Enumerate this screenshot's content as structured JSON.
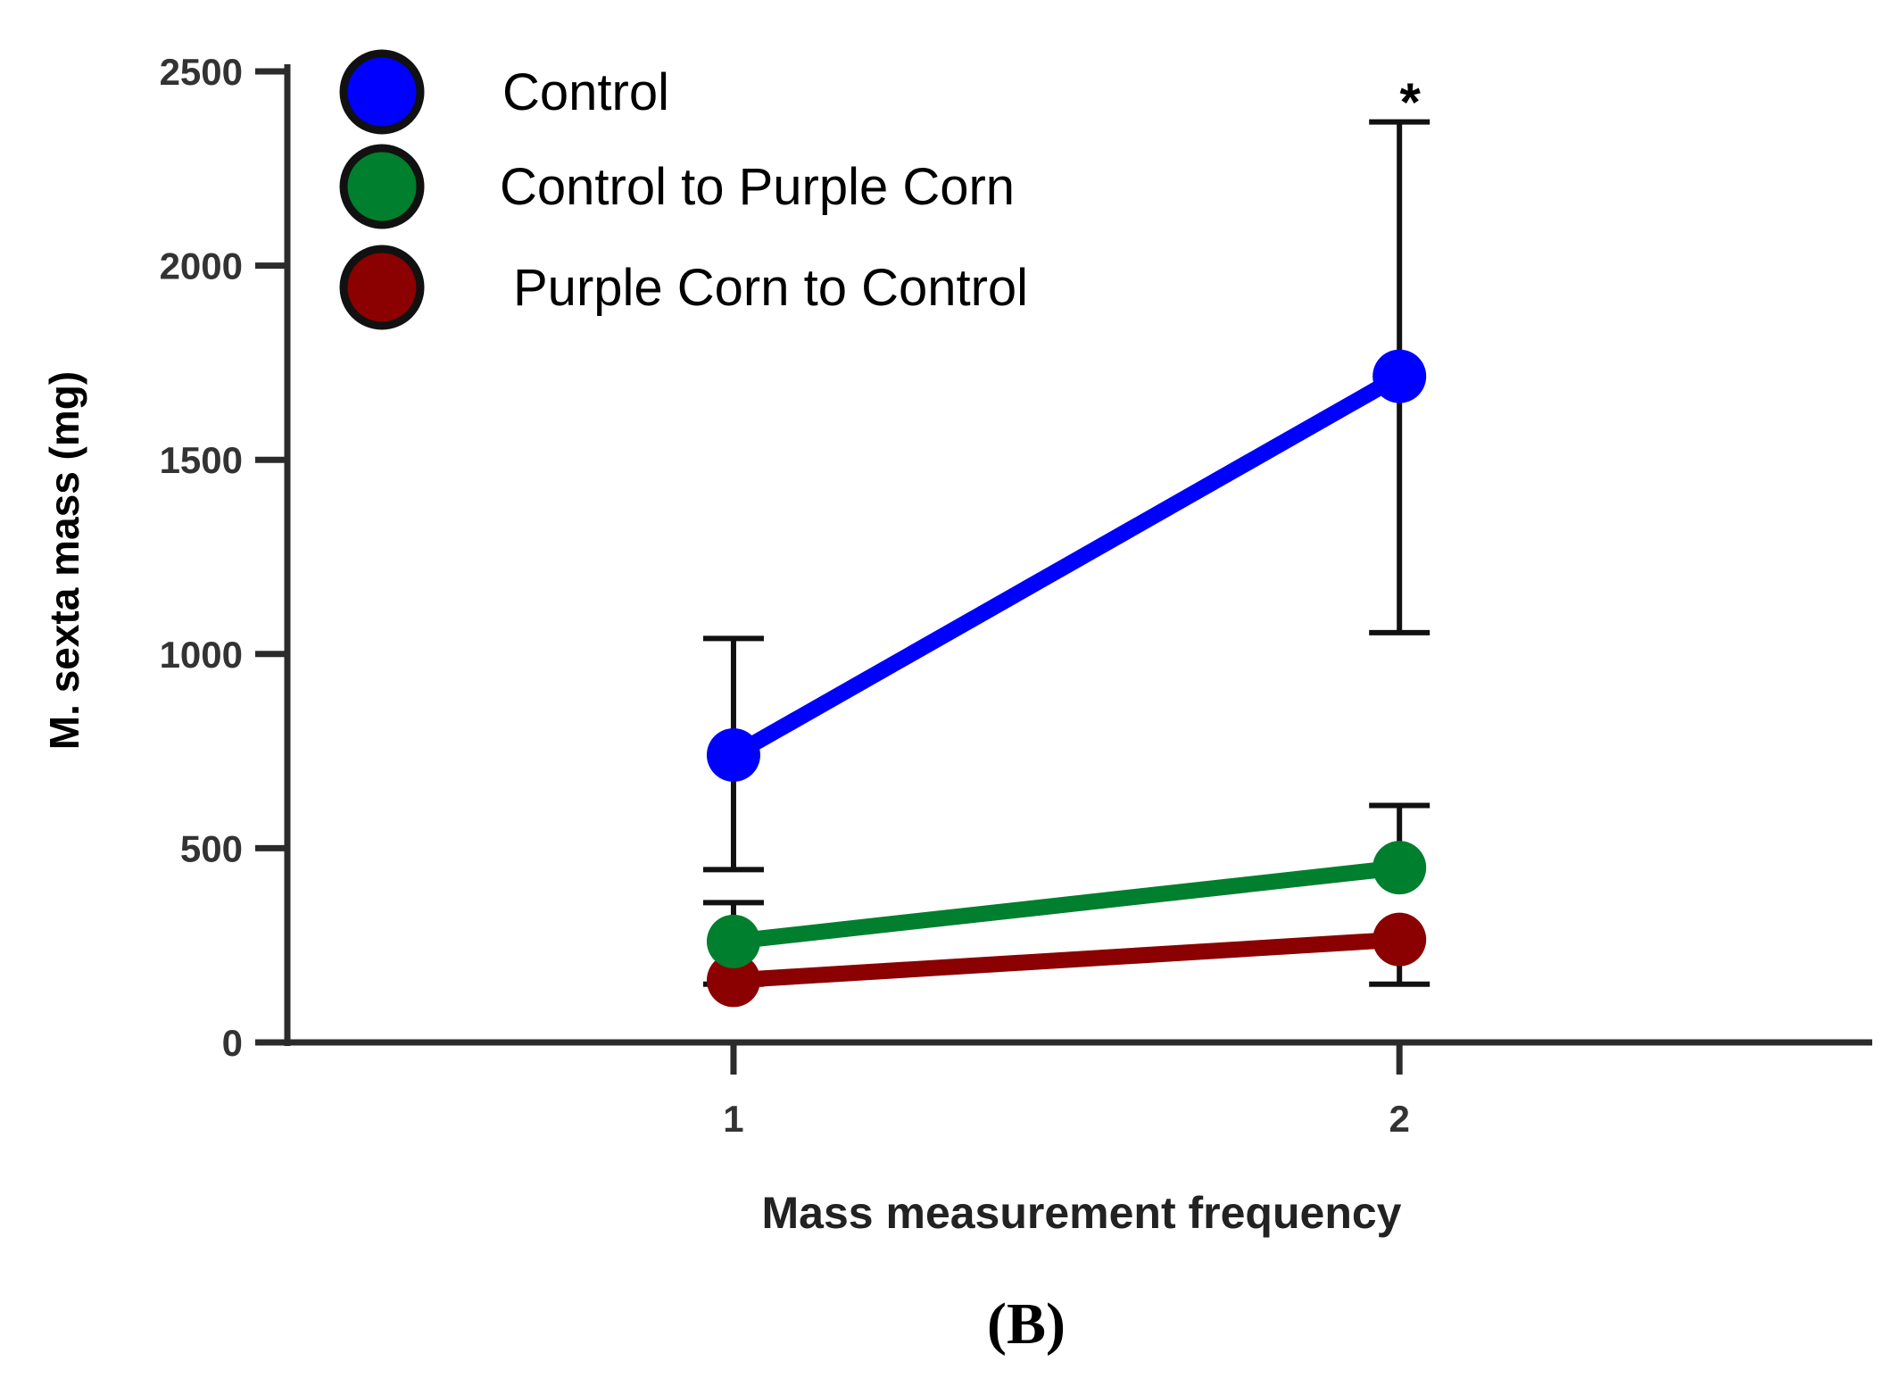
{
  "chart_data": {
    "type": "line",
    "title": "",
    "xlabel": "Mass measurement frequency",
    "ylabel": "M. sexta mass (mg)",
    "x": [
      1,
      2
    ],
    "x_tick_labels": [
      "1",
      "2"
    ],
    "xlim": [
      0.33,
      2.71
    ],
    "ylim": [
      0,
      2500
    ],
    "y_ticks": [
      0,
      500,
      1000,
      1500,
      2000,
      2500
    ],
    "y_tick_labels": [
      "0",
      "500",
      "1000",
      "1500",
      "2000",
      "2500"
    ],
    "grid": false,
    "legend_position": "top-left",
    "series": [
      {
        "name": "Control",
        "color": "#0000ff",
        "values": [
          740,
          1715
        ],
        "error_upper": [
          1040,
          2370
        ],
        "error_lower": [
          445,
          1055
        ]
      },
      {
        "name": "Control to Purple Corn",
        "color": "#007f2e",
        "values": [
          260,
          450
        ],
        "error_upper": [
          360,
          610
        ],
        "error_lower": null
      },
      {
        "name": "Purple Corn to Control",
        "color": "#8b0000",
        "values": [
          160,
          265
        ],
        "error_upper": null,
        "error_lower": [
          150,
          150
        ]
      }
    ],
    "annotations": [
      {
        "text": "*",
        "x": 2,
        "y": 2470
      }
    ],
    "panel_label": "(B)"
  }
}
